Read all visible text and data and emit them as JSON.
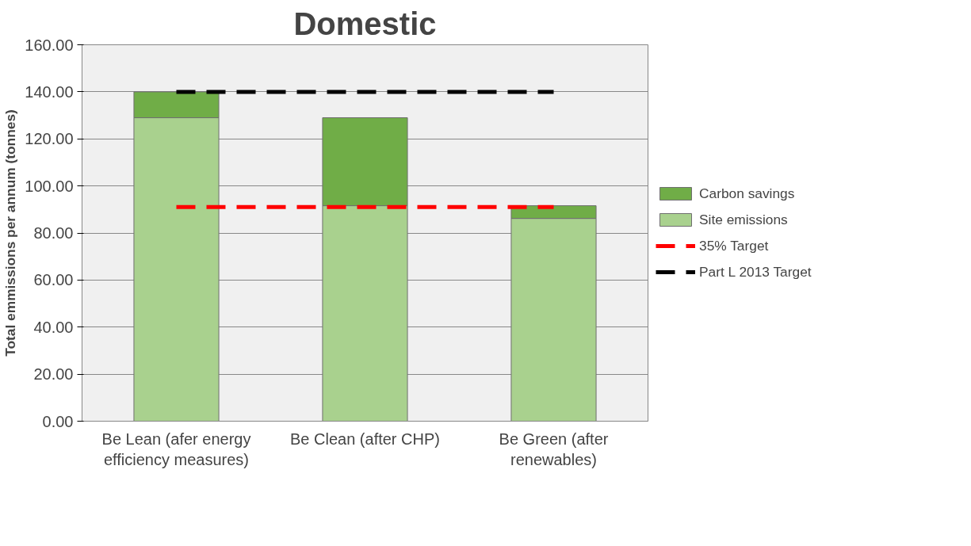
{
  "chart_data": {
    "type": "bar",
    "title": "Domestic",
    "ylabel": "Total emmissions per annum (tonnes)",
    "stacked": true,
    "categories": [
      "Be Lean (afer energy efficiency measures)",
      "Be Clean (after CHP)",
      "Be Green (after renewables)"
    ],
    "series": [
      {
        "name": "Site emissions",
        "color": "#a9d18e",
        "values": [
          129.0,
          91.6,
          86.2
        ]
      },
      {
        "name": "Carbon savings",
        "color": "#70ad47",
        "values": [
          11.0,
          37.4,
          5.4
        ]
      },
      {
        "name": "35% Target",
        "type": "line",
        "color": "#ff0000",
        "line_style": "dashed",
        "values": [
          91.0,
          91.0,
          91.0
        ]
      },
      {
        "name": "Part L 2013 Target",
        "type": "line",
        "color": "#000000",
        "line_style": "dashed",
        "values": [
          140.0,
          140.0,
          140.0
        ]
      }
    ],
    "ylim": [
      0,
      160
    ],
    "yticks": [
      {
        "value": 0,
        "label": "0.00"
      },
      {
        "value": 20,
        "label": "20.00"
      },
      {
        "value": 40,
        "label": "40.00"
      },
      {
        "value": 60,
        "label": "60.00"
      },
      {
        "value": 80,
        "label": "80.00"
      },
      {
        "value": 100,
        "label": "100.00"
      },
      {
        "value": 120,
        "label": "120.00"
      },
      {
        "value": 140,
        "label": "140.00"
      },
      {
        "value": 160,
        "label": "160.00"
      }
    ],
    "grid": "y",
    "legend": "right"
  }
}
